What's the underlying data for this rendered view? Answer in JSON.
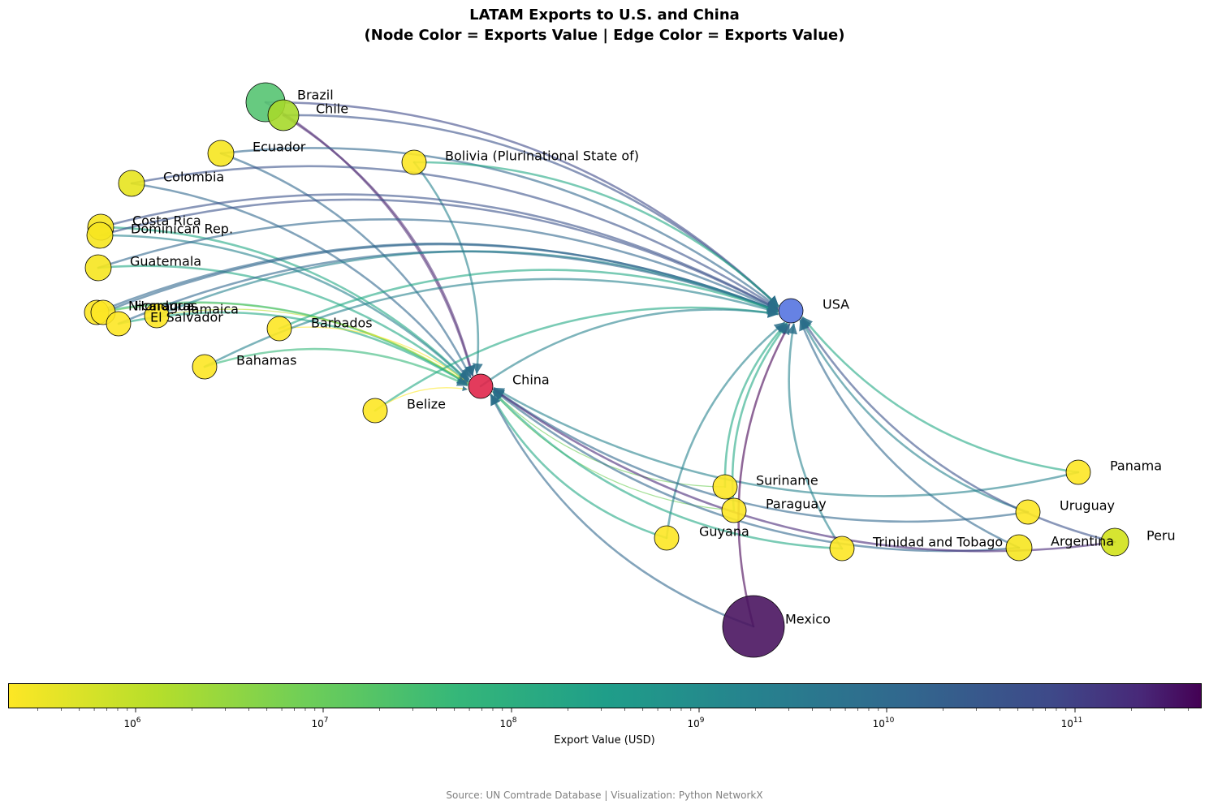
{
  "title": {
    "line1": "LATAM Exports to U.S. and China",
    "line2": "(Node Color = Exports Value | Edge Color = Exports Value)"
  },
  "colorbar": {
    "label": "Export Value (USD)",
    "scale": "log",
    "colormap": "viridis (reversed: yellow = low, purple = high)",
    "ticks": [
      {
        "base": "10",
        "exp": "6"
      },
      {
        "base": "10",
        "exp": "7"
      },
      {
        "base": "10",
        "exp": "8"
      },
      {
        "base": "10",
        "exp": "9"
      },
      {
        "base": "10",
        "exp": "10"
      },
      {
        "base": "10",
        "exp": "11"
      }
    ]
  },
  "source": "Source: UN Comtrade Database | Visualization: Python NetworkX",
  "nodes": [
    {
      "id": "usa",
      "label": "USA",
      "color": "#5574e0",
      "role": "destination"
    },
    {
      "id": "china",
      "label": "China",
      "color": "#e0264a",
      "role": "destination"
    },
    {
      "id": "brazil",
      "label": "Brazil",
      "color": "#56c472"
    },
    {
      "id": "chile",
      "label": "Chile",
      "color": "#a6d92b"
    },
    {
      "id": "ecuador",
      "label": "Ecuador",
      "color": "#f6e620"
    },
    {
      "id": "bolivia",
      "label": "Bolivia (Plurinational State of)",
      "color": "#fde725"
    },
    {
      "id": "colombia",
      "label": "Colombia",
      "color": "#e7e41f"
    },
    {
      "id": "costarica",
      "label": "Costa Rica",
      "color": "#f6e620"
    },
    {
      "id": "dominican",
      "label": "Dominican Rep.",
      "color": "#f6e620"
    },
    {
      "id": "guatemala",
      "label": "Guatemala",
      "color": "#f6e620"
    },
    {
      "id": "nicaragua",
      "label": "Nicaragua",
      "color": "#fde725"
    },
    {
      "id": "honduras",
      "label": "Honduras",
      "color": "#fde725"
    },
    {
      "id": "jamaica",
      "label": "Jamaica",
      "color": "#fde725"
    },
    {
      "id": "elsalvador",
      "label": "El Salvador",
      "color": "#fde725"
    },
    {
      "id": "barbados",
      "label": "Barbados",
      "color": "#fde725"
    },
    {
      "id": "bahamas",
      "label": "Bahamas",
      "color": "#fde725"
    },
    {
      "id": "belize",
      "label": "Belize",
      "color": "#fde725"
    },
    {
      "id": "suriname",
      "label": "Suriname",
      "color": "#fde725"
    },
    {
      "id": "paraguay",
      "label": "Paraguay",
      "color": "#fde725"
    },
    {
      "id": "guyana",
      "label": "Guyana",
      "color": "#fde725"
    },
    {
      "id": "trinidad",
      "label": "Trinidad and Tobago",
      "color": "#fde725"
    },
    {
      "id": "argentina",
      "label": "Argentina",
      "color": "#f6e620"
    },
    {
      "id": "uruguay",
      "label": "Uruguay",
      "color": "#fde725"
    },
    {
      "id": "panama",
      "label": "Panama",
      "color": "#fde725"
    },
    {
      "id": "peru",
      "label": "Peru",
      "color": "#d2e21b"
    },
    {
      "id": "mexico",
      "label": "Mexico",
      "color": "#4a1560"
    }
  ],
  "edges": [
    {
      "from": "brazil",
      "to": "usa",
      "color": "#3e4a89"
    },
    {
      "from": "brazil",
      "to": "china",
      "color": "#5c3a7e"
    },
    {
      "from": "chile",
      "to": "usa",
      "color": "#3b528b"
    },
    {
      "from": "chile",
      "to": "china",
      "color": "#5c3a7e"
    },
    {
      "from": "ecuador",
      "to": "usa",
      "color": "#31688e"
    },
    {
      "from": "ecuador",
      "to": "china",
      "color": "#31688e"
    },
    {
      "from": "bolivia",
      "to": "usa",
      "color": "#22a884"
    },
    {
      "from": "bolivia",
      "to": "china",
      "color": "#26828e"
    },
    {
      "from": "colombia",
      "to": "usa",
      "color": "#3b528b"
    },
    {
      "from": "colombia",
      "to": "china",
      "color": "#31688e"
    },
    {
      "from": "costarica",
      "to": "usa",
      "color": "#3b528b"
    },
    {
      "from": "costarica",
      "to": "china",
      "color": "#22a884"
    },
    {
      "from": "dominican",
      "to": "usa",
      "color": "#3b528b"
    },
    {
      "from": "dominican",
      "to": "china",
      "color": "#26828e"
    },
    {
      "from": "guatemala",
      "to": "usa",
      "color": "#31688e"
    },
    {
      "from": "guatemala",
      "to": "china",
      "color": "#22a884"
    },
    {
      "from": "nicaragua",
      "to": "usa",
      "color": "#31688e"
    },
    {
      "from": "nicaragua",
      "to": "china",
      "color": "#35b779"
    },
    {
      "from": "honduras",
      "to": "usa",
      "color": "#31688e"
    },
    {
      "from": "honduras",
      "to": "china",
      "color": "#6ece58"
    },
    {
      "from": "elsalvador",
      "to": "usa",
      "color": "#31688e"
    },
    {
      "from": "elsalvador",
      "to": "china",
      "color": "#22a884"
    },
    {
      "from": "jamaica",
      "to": "usa",
      "color": "#26828e"
    },
    {
      "from": "jamaica",
      "to": "china",
      "color": "#b5de2b"
    },
    {
      "from": "barbados",
      "to": "usa",
      "color": "#22a884"
    },
    {
      "from": "barbados",
      "to": "china",
      "color": "#fde725"
    },
    {
      "from": "bahamas",
      "to": "usa",
      "color": "#26828e"
    },
    {
      "from": "bahamas",
      "to": "china",
      "color": "#35b779"
    },
    {
      "from": "belize",
      "to": "usa",
      "color": "#22a884"
    },
    {
      "from": "belize",
      "to": "china",
      "color": "#fde725"
    },
    {
      "from": "suriname",
      "to": "usa",
      "color": "#22a884"
    },
    {
      "from": "suriname",
      "to": "china",
      "color": "#6ece58"
    },
    {
      "from": "paraguay",
      "to": "usa",
      "color": "#22a884"
    },
    {
      "from": "paraguay",
      "to": "china",
      "color": "#6ece58"
    },
    {
      "from": "guyana",
      "to": "usa",
      "color": "#26828e"
    },
    {
      "from": "guyana",
      "to": "china",
      "color": "#22a884"
    },
    {
      "from": "trinidad",
      "to": "usa",
      "color": "#26828e"
    },
    {
      "from": "trinidad",
      "to": "china",
      "color": "#22a884"
    },
    {
      "from": "argentina",
      "to": "usa",
      "color": "#31688e"
    },
    {
      "from": "argentina",
      "to": "china",
      "color": "#31688e"
    },
    {
      "from": "uruguay",
      "to": "usa",
      "color": "#26828e"
    },
    {
      "from": "uruguay",
      "to": "china",
      "color": "#31688e"
    },
    {
      "from": "panama",
      "to": "usa",
      "color": "#22a884"
    },
    {
      "from": "panama",
      "to": "china",
      "color": "#26828e"
    },
    {
      "from": "peru",
      "to": "usa",
      "color": "#3b528b"
    },
    {
      "from": "peru",
      "to": "china",
      "color": "#482878"
    },
    {
      "from": "mexico",
      "to": "usa",
      "color": "#440154"
    },
    {
      "from": "mexico",
      "to": "china",
      "color": "#31688e"
    },
    {
      "from": "china",
      "to": "usa",
      "color": "#26828e"
    }
  ]
}
